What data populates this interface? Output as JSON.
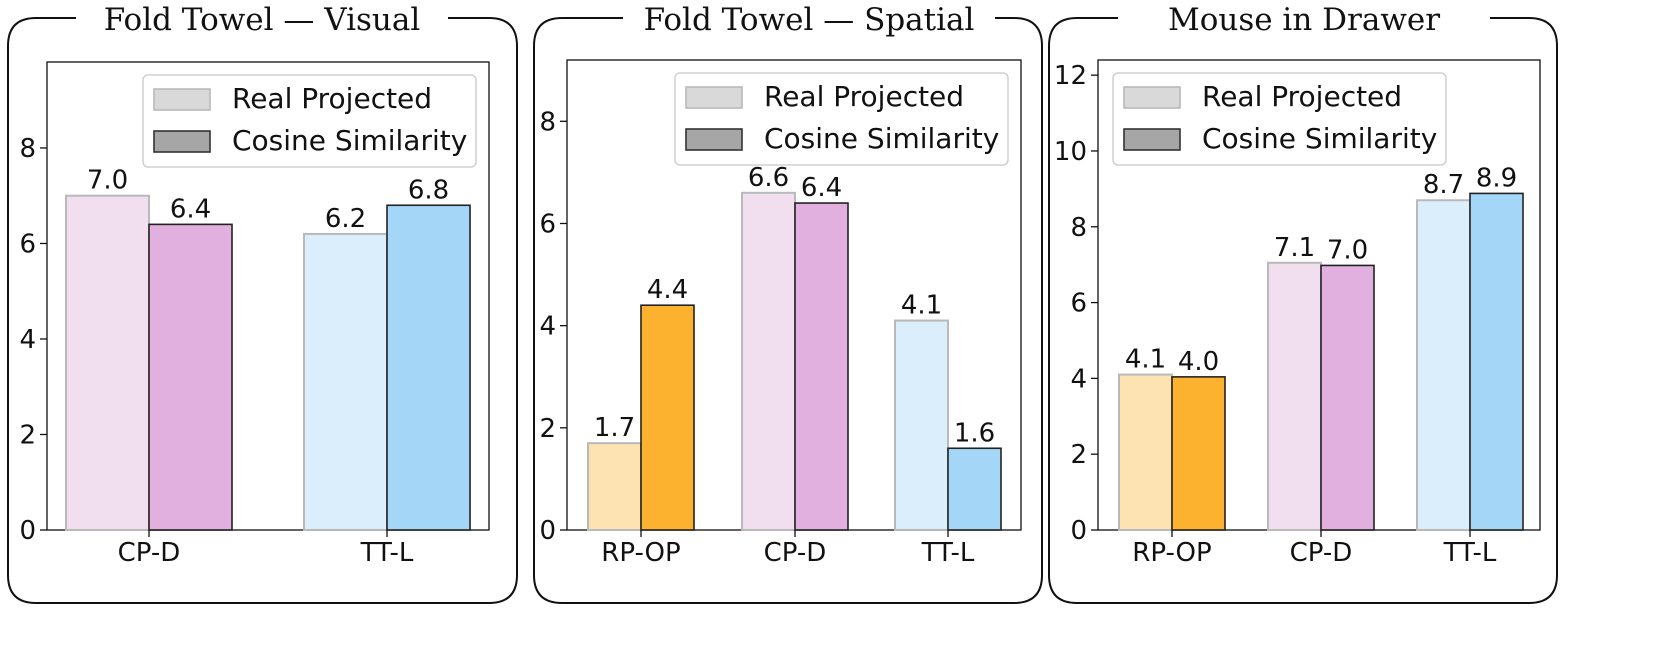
{
  "chart_data": [
    {
      "type": "bar",
      "title": "Fold Towel — Visual",
      "categories": [
        "CP-D",
        "TT-L"
      ],
      "series": [
        {
          "name": "Real Projected",
          "values": [
            7.0,
            6.2
          ],
          "labels": [
            "7.0",
            "6.2"
          ]
        },
        {
          "name": "Cosine Similarity",
          "values": [
            6.4,
            6.8
          ],
          "labels": [
            "6.4",
            "6.8"
          ]
        }
      ],
      "category_colors": [
        {
          "light": "#f1deef",
          "dark": "#e1b0de"
        },
        {
          "light": "#dbeefb",
          "dark": "#a3d6f7"
        }
      ],
      "ylim": [
        0,
        9.8
      ],
      "yticks": [
        0,
        2,
        4,
        6,
        8
      ],
      "ytick_labels": [
        "0",
        "2",
        "4",
        "6",
        "8"
      ],
      "legend": "top-right",
      "grid": false
    },
    {
      "type": "bar",
      "title": "Fold Towel — Spatial",
      "categories": [
        "RP-OP",
        "CP-D",
        "TT-L"
      ],
      "series": [
        {
          "name": "Real Projected",
          "values": [
            1.7,
            6.6,
            4.1
          ],
          "labels": [
            "1.7",
            "6.6",
            "4.1"
          ]
        },
        {
          "name": "Cosine Similarity",
          "values": [
            4.4,
            6.4,
            1.6
          ],
          "labels": [
            "4.4",
            "6.4",
            "1.6"
          ]
        }
      ],
      "category_colors": [
        {
          "light": "#fde2b2",
          "dark": "#fdb22f"
        },
        {
          "light": "#f1deef",
          "dark": "#e1b0de"
        },
        {
          "light": "#dbeefb",
          "dark": "#a3d6f7"
        }
      ],
      "ylim": [
        0,
        9.2
      ],
      "yticks": [
        0,
        2,
        4,
        6,
        8
      ],
      "ytick_labels": [
        "0",
        "2",
        "4",
        "6",
        "8"
      ],
      "legend": "top-right",
      "grid": false
    },
    {
      "type": "bar",
      "title": "Mouse in Drawer",
      "categories": [
        "RP-OP",
        "CP-D",
        "TT-L"
      ],
      "series": [
        {
          "name": "Real Projected",
          "values": [
            4.1,
            7.05,
            8.7
          ],
          "labels": [
            "4.1",
            "7.1",
            "8.7"
          ]
        },
        {
          "name": "Cosine Similarity",
          "values": [
            4.04,
            6.98,
            8.88
          ],
          "labels": [
            "4.0",
            "7.0",
            "8.9"
          ]
        }
      ],
      "category_colors": [
        {
          "light": "#fde2b2",
          "dark": "#fdb22f"
        },
        {
          "light": "#f1deef",
          "dark": "#e1b0de"
        },
        {
          "light": "#dbeefb",
          "dark": "#a3d6f7"
        }
      ],
      "ylim": [
        0,
        12.4
      ],
      "yticks": [
        0,
        2,
        4,
        6,
        8,
        10,
        12
      ],
      "ytick_labels": [
        "0",
        "2",
        "4",
        "6",
        "8",
        "10",
        "12"
      ],
      "legend": "top-right",
      "grid": false
    }
  ],
  "legend_colors": {
    "Real Projected": "#d9d9d9",
    "Cosine Similarity": "#a6a6a6"
  }
}
